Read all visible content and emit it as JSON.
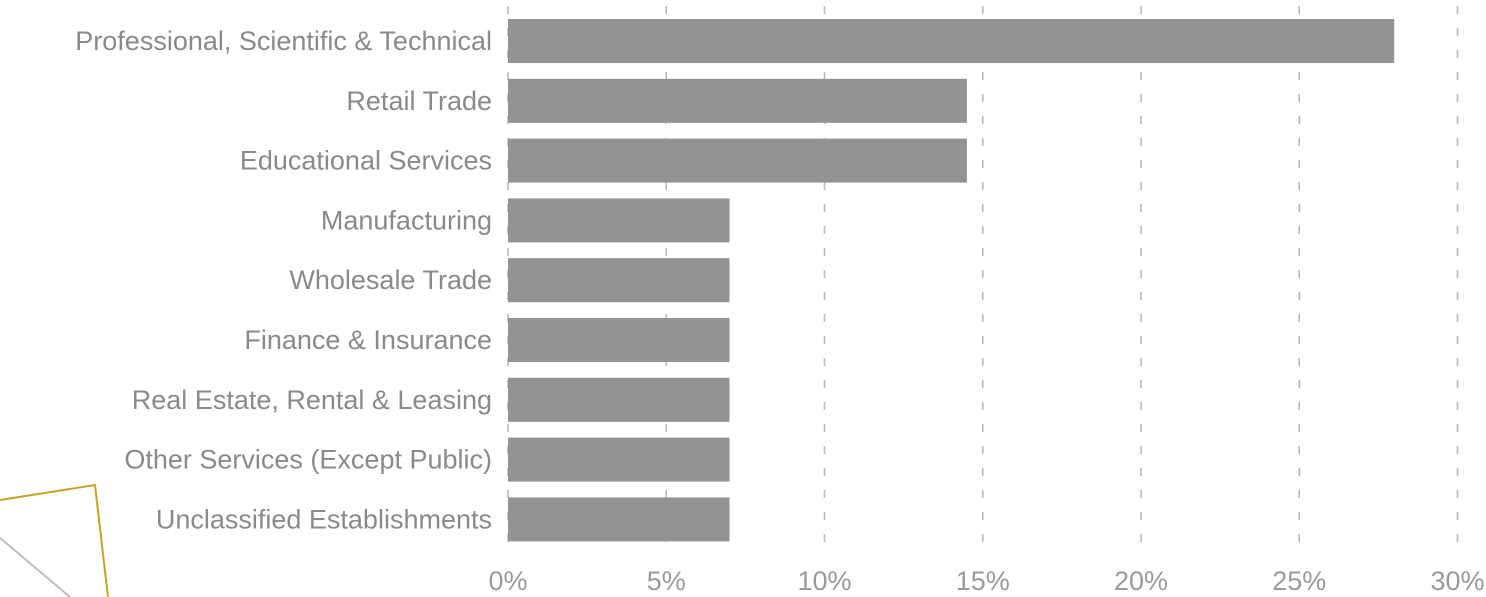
{
  "chart_data": {
    "type": "bar",
    "orientation": "horizontal",
    "categories": [
      "Professional, Scientific & Technical",
      "Retail Trade",
      "Educational Services",
      "Manufacturing",
      "Wholesale Trade",
      "Finance & Insurance",
      "Real Estate, Rental & Leasing",
      "Other Services (Except Public)",
      "Unclassified Establishments"
    ],
    "values": [
      28.0,
      14.5,
      14.5,
      7.0,
      7.0,
      7.0,
      7.0,
      7.0,
      7.0
    ],
    "value_unit": "percent",
    "xlim": [
      0,
      30
    ],
    "x_ticks": [
      0,
      5,
      10,
      15,
      20,
      25,
      30
    ],
    "x_tick_labels": [
      "0%",
      "5%",
      "10%",
      "15%",
      "20%",
      "25%",
      "30%"
    ],
    "title": "",
    "xlabel": "",
    "ylabel": "",
    "grid": "vertical dashed",
    "legend": "none",
    "bar_color": "#939396"
  },
  "decoration": {
    "gold_outline_color": "#c9a227",
    "grey_line_color": "#bdbdbf"
  }
}
